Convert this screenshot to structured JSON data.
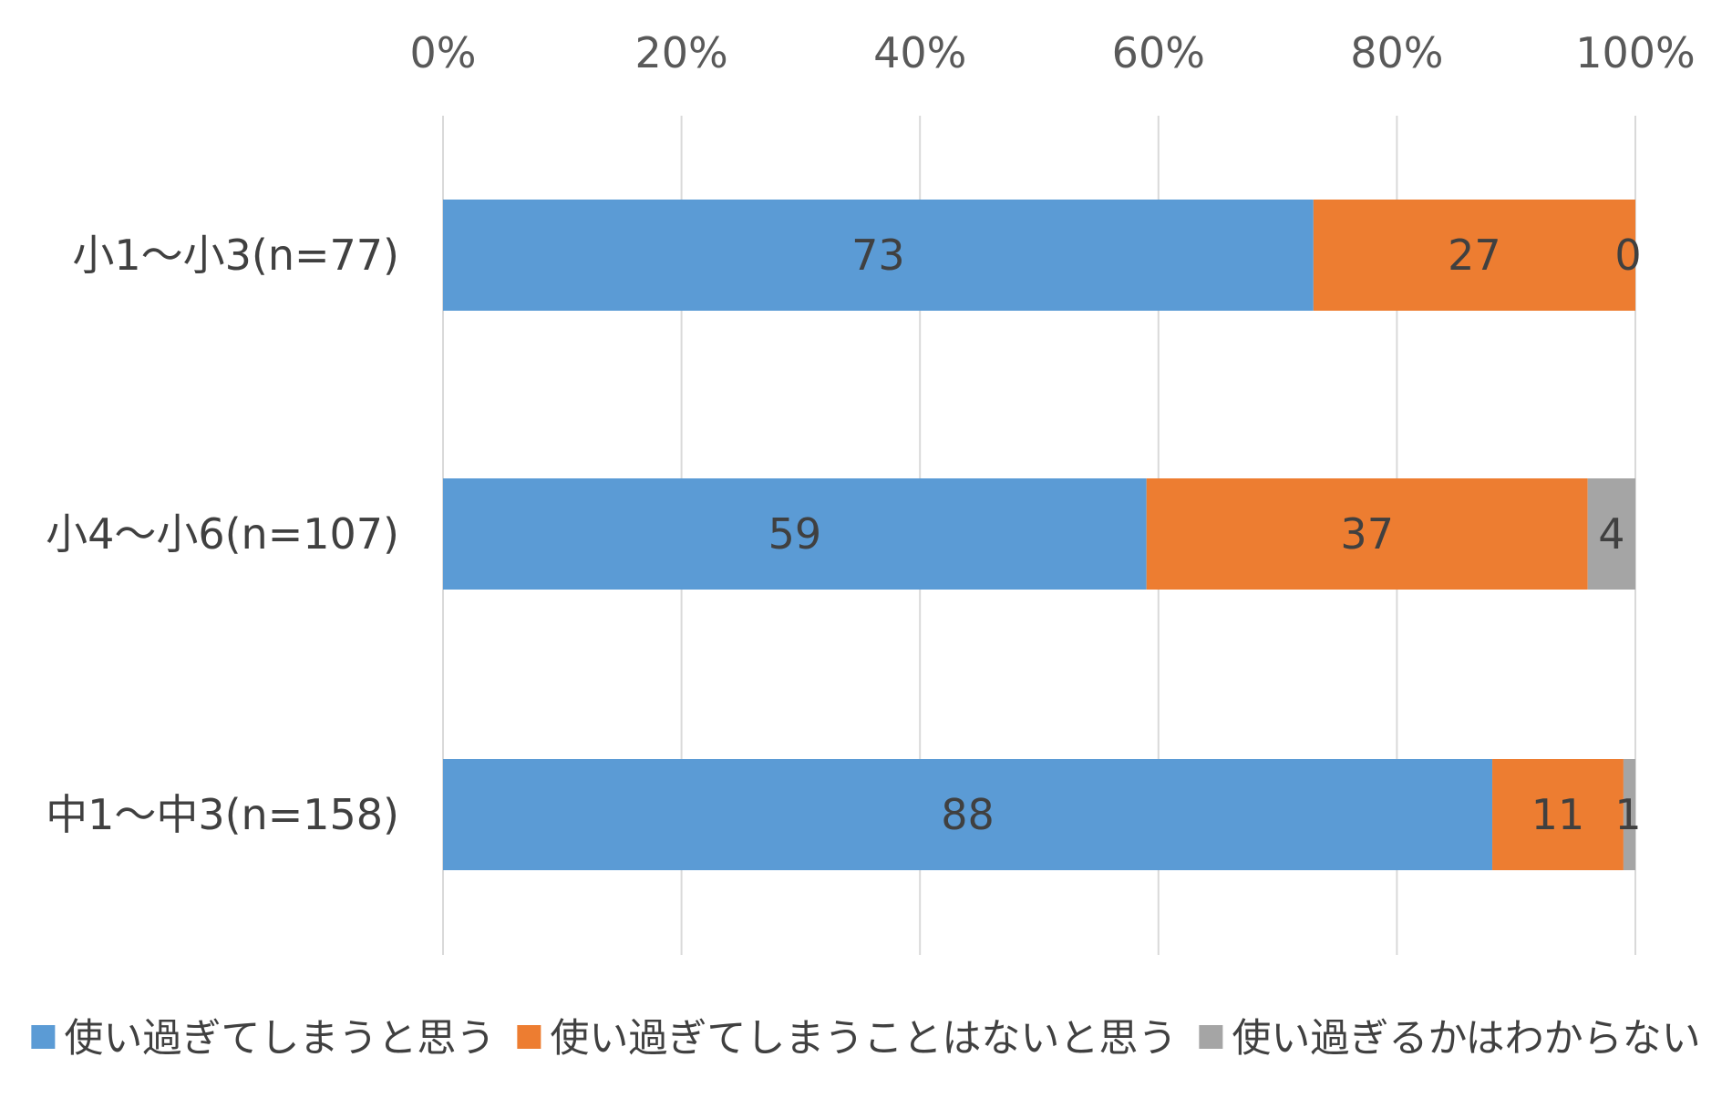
{
  "chart_data": {
    "type": "bar",
    "orientation": "horizontal",
    "stacked": "percent",
    "categories": [
      "小1～小3(n=77)",
      "小4～小6(n=107)",
      "中1～中3(n=158)"
    ],
    "series": [
      {
        "name": "使い過ぎてしまうと思う",
        "values": [
          73,
          59,
          88
        ],
        "color": "#5b9bd5"
      },
      {
        "name": "使い過ぎてしまうことはないと思う",
        "values": [
          27,
          37,
          11
        ],
        "color": "#ed7d31"
      },
      {
        "name": "使い過ぎるかはわからない",
        "values": [
          0,
          4,
          1
        ],
        "color": "#a5a5a5"
      }
    ],
    "xlim": [
      0,
      100
    ],
    "x_ticks": [
      "0%",
      "20%",
      "40%",
      "60%",
      "80%",
      "100%"
    ],
    "x_axis_position": "top",
    "grid": true,
    "legend": "bottom",
    "data_labels": true,
    "title": "",
    "xlabel": "",
    "ylabel": ""
  }
}
